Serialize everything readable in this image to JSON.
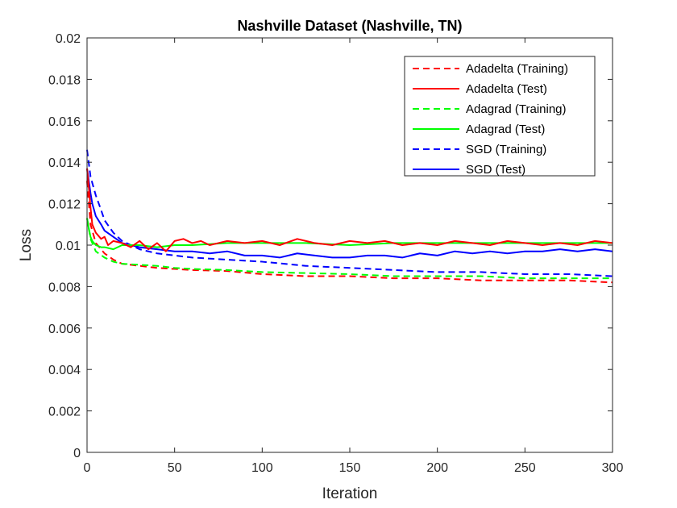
{
  "chart_data": {
    "type": "line",
    "title": "Nashville Dataset (Nashville, TN)",
    "xlabel": "Iteration",
    "ylabel": "Loss",
    "xlim": [
      0,
      300
    ],
    "ylim": [
      0,
      0.02
    ],
    "xticks": [
      0,
      50,
      100,
      150,
      200,
      250,
      300
    ],
    "xtick_labels": [
      "0",
      "50",
      "100",
      "150",
      "200",
      "250",
      "300"
    ],
    "yticks": [
      0,
      0.002,
      0.004,
      0.006,
      0.008,
      0.01,
      0.012,
      0.014,
      0.016,
      0.018,
      0.02
    ],
    "ytick_labels": [
      "0",
      "0.002",
      "0.004",
      "0.006",
      "0.008",
      "0.01",
      "0.012",
      "0.014",
      "0.016",
      "0.018",
      "0.02"
    ],
    "grid": false,
    "legend_position": "top-right",
    "series": [
      {
        "name": "Adadelta (Training)",
        "color": "#ff0000",
        "style": "dashed",
        "x": [
          0,
          2,
          5,
          10,
          15,
          20,
          30,
          40,
          50,
          60,
          80,
          100,
          125,
          150,
          175,
          200,
          225,
          250,
          275,
          300
        ],
        "y": [
          0.0131,
          0.011,
          0.0101,
          0.0096,
          0.0093,
          0.0091,
          0.009,
          0.0089,
          0.00885,
          0.0088,
          0.00875,
          0.0086,
          0.0085,
          0.0085,
          0.0084,
          0.0084,
          0.0083,
          0.0083,
          0.0083,
          0.0082
        ]
      },
      {
        "name": "Adadelta (Test)",
        "color": "#ff0000",
        "style": "solid",
        "x": [
          0,
          1,
          2,
          3,
          5,
          8,
          10,
          12,
          15,
          20,
          25,
          30,
          35,
          40,
          45,
          50,
          55,
          60,
          65,
          70,
          75,
          80,
          90,
          100,
          110,
          120,
          130,
          140,
          150,
          160,
          170,
          180,
          190,
          200,
          210,
          220,
          230,
          240,
          250,
          260,
          270,
          280,
          290,
          300
        ],
        "y": [
          0.0137,
          0.0128,
          0.0118,
          0.011,
          0.0106,
          0.0103,
          0.0104,
          0.01,
          0.0102,
          0.0101,
          0.0099,
          0.0102,
          0.0098,
          0.0101,
          0.0097,
          0.0102,
          0.0103,
          0.0101,
          0.0102,
          0.01,
          0.0101,
          0.0102,
          0.0101,
          0.0102,
          0.01,
          0.0103,
          0.0101,
          0.01,
          0.0102,
          0.0101,
          0.0102,
          0.01,
          0.0101,
          0.01,
          0.0102,
          0.0101,
          0.01,
          0.0102,
          0.0101,
          0.01,
          0.0101,
          0.01,
          0.0102,
          0.0101
        ]
      },
      {
        "name": "Adagrad (Training)",
        "color": "#00ff00",
        "style": "dashed",
        "x": [
          0,
          2,
          5,
          10,
          15,
          20,
          30,
          40,
          50,
          60,
          80,
          100,
          125,
          150,
          175,
          200,
          225,
          250,
          275,
          300
        ],
        "y": [
          0.0113,
          0.0103,
          0.0097,
          0.0094,
          0.0092,
          0.0091,
          0.00905,
          0.009,
          0.0089,
          0.00885,
          0.0088,
          0.0087,
          0.00865,
          0.0086,
          0.0085,
          0.0085,
          0.0085,
          0.0084,
          0.0084,
          0.0084
        ]
      },
      {
        "name": "Adagrad (Test)",
        "color": "#00ff00",
        "style": "solid",
        "x": [
          0,
          1,
          2,
          3,
          5,
          8,
          10,
          15,
          20,
          30,
          40,
          50,
          60,
          80,
          100,
          125,
          150,
          175,
          200,
          225,
          250,
          275,
          300
        ],
        "y": [
          0.0113,
          0.0108,
          0.0104,
          0.0102,
          0.01,
          0.0099,
          0.0099,
          0.0098,
          0.01,
          0.01,
          0.0099,
          0.01,
          0.01,
          0.0101,
          0.0101,
          0.0101,
          0.01,
          0.0101,
          0.0101,
          0.0101,
          0.0101,
          0.0101,
          0.0101
        ]
      },
      {
        "name": "SGD (Training)",
        "color": "#0000ff",
        "style": "dashed",
        "x": [
          0,
          2,
          5,
          8,
          10,
          15,
          20,
          30,
          40,
          50,
          60,
          80,
          100,
          125,
          150,
          175,
          200,
          225,
          250,
          275,
          300
        ],
        "y": [
          0.0146,
          0.0133,
          0.0124,
          0.0117,
          0.0112,
          0.0106,
          0.0102,
          0.0098,
          0.0096,
          0.0095,
          0.0094,
          0.0093,
          0.0092,
          0.009,
          0.0089,
          0.0088,
          0.0087,
          0.0087,
          0.0086,
          0.0086,
          0.0085
        ]
      },
      {
        "name": "SGD (Test)",
        "color": "#0000ff",
        "style": "solid",
        "x": [
          0,
          1,
          2,
          3,
          5,
          8,
          10,
          15,
          20,
          25,
          30,
          40,
          50,
          60,
          70,
          80,
          90,
          100,
          110,
          120,
          130,
          140,
          150,
          160,
          170,
          180,
          190,
          200,
          210,
          220,
          230,
          240,
          250,
          260,
          270,
          280,
          290,
          300
        ],
        "y": [
          0.0137,
          0.0131,
          0.0125,
          0.012,
          0.0114,
          0.011,
          0.0107,
          0.0104,
          0.0101,
          0.01,
          0.0099,
          0.0098,
          0.0097,
          0.0097,
          0.0096,
          0.0097,
          0.0095,
          0.0095,
          0.0094,
          0.0096,
          0.0095,
          0.0094,
          0.0094,
          0.0095,
          0.0095,
          0.0094,
          0.0096,
          0.0095,
          0.0097,
          0.0096,
          0.0097,
          0.0096,
          0.0097,
          0.0097,
          0.0098,
          0.0097,
          0.0098,
          0.0097
        ]
      }
    ]
  }
}
